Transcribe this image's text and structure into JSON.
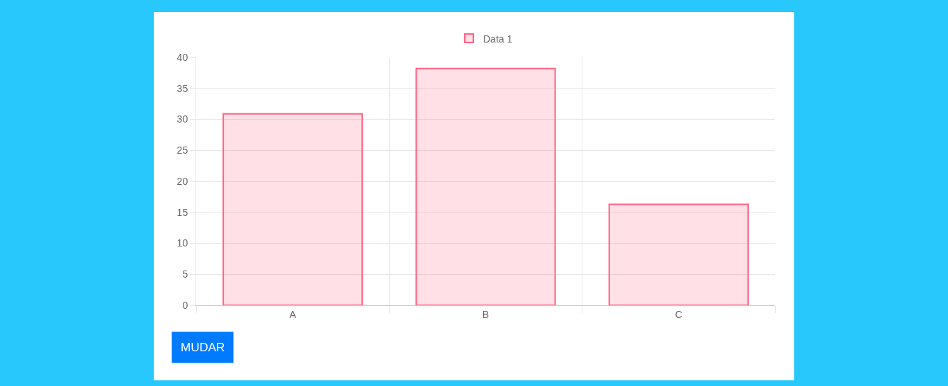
{
  "chart_data": {
    "type": "bar",
    "categories": [
      "A",
      "B",
      "C"
    ],
    "series": [
      {
        "name": "Data 1",
        "color": "#ff6384",
        "values": [
          30.9,
          38.2,
          16.3
        ]
      }
    ],
    "ylim": [
      0,
      40
    ],
    "yticks": [
      0,
      5,
      10,
      15,
      20,
      25,
      30,
      35,
      40
    ],
    "grid": true,
    "legend": "top",
    "annotations": [
      "MUDAR"
    ]
  }
}
